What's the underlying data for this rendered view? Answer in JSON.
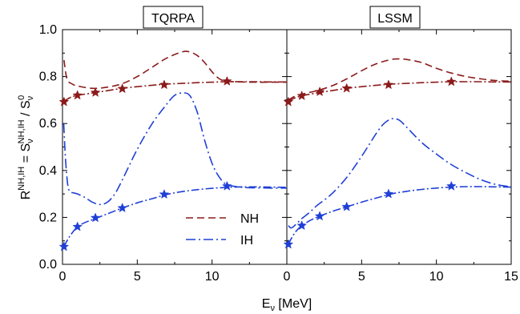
{
  "chart_data": {
    "type": "line",
    "xlabel": "E",
    "xlabel_sub": "ν",
    "xlabel_unit": " [MeV]",
    "ylabel": {
      "main": "R",
      "sup": "NH,IH",
      "mid": " = S",
      "sub": "ν",
      "sup2": "NH,IH",
      "tail": " / S",
      "sub2": "ν",
      "sup3": "0"
    },
    "ylim": [
      0.0,
      1.0
    ],
    "yticks": [
      "0.0",
      "0.2",
      "0.4",
      "0.6",
      "0.8",
      "1.0"
    ],
    "legend": {
      "placement": "bottom-center of left panel",
      "entries": [
        {
          "name": "NH",
          "color": "#8b1a1a",
          "style": "dashed"
        },
        {
          "name": "IH",
          "color": "#1f3fd6",
          "style": "dash-dot"
        }
      ]
    },
    "panels": [
      {
        "title": "TQRPA",
        "xlim": [
          0,
          15
        ],
        "xticks": [
          "0",
          "5",
          "10"
        ],
        "series": [
          {
            "name": "NH",
            "color": "#8b1a1a",
            "style": "dashed",
            "x": [
              0.1,
              0.3,
              0.6,
              1,
              2,
              3,
              4,
              5,
              6,
              7,
              8,
              8.5,
              9,
              9.5,
              10,
              10.5,
              11,
              12,
              13,
              14,
              15
            ],
            "y": [
              0.87,
              0.79,
              0.77,
              0.76,
              0.75,
              0.755,
              0.77,
              0.8,
              0.84,
              0.88,
              0.905,
              0.905,
              0.89,
              0.86,
              0.82,
              0.79,
              0.78,
              0.777,
              0.776,
              0.776,
              0.776
            ]
          },
          {
            "name": "NH-star",
            "color": "#8b1a1a",
            "style": "dashdot",
            "x": [
              0.1,
              0.5,
              1,
              2,
              3,
              4,
              5,
              6,
              7,
              8,
              9,
              10,
              11,
              12,
              13,
              14,
              15
            ],
            "y": [
              0.695,
              0.71,
              0.72,
              0.73,
              0.74,
              0.75,
              0.757,
              0.763,
              0.768,
              0.771,
              0.774,
              0.776,
              0.778,
              0.778,
              0.778,
              0.777,
              0.777
            ]
          },
          {
            "name": "NH-star-markers",
            "color": "#8b1a1a",
            "style": "markers",
            "x": [
              0.1,
              1.0,
              2.2,
              4.0,
              6.8,
              11.0
            ],
            "y": [
              0.692,
              0.72,
              0.732,
              0.748,
              0.765,
              0.78
            ]
          },
          {
            "name": "IH",
            "color": "#1f3fd6",
            "style": "dashdot-long",
            "x": [
              0.08,
              0.2,
              0.35,
              0.5,
              0.7,
              1,
              1.5,
              2,
              2.5,
              3,
              3.5,
              4,
              5,
              6,
              7,
              7.5,
              8,
              8.5,
              9,
              9.5,
              10,
              10.5,
              11,
              12,
              13,
              14,
              15
            ],
            "y": [
              0.6,
              0.45,
              0.34,
              0.31,
              0.305,
              0.3,
              0.285,
              0.265,
              0.255,
              0.265,
              0.3,
              0.36,
              0.49,
              0.6,
              0.685,
              0.72,
              0.73,
              0.72,
              0.65,
              0.53,
              0.43,
              0.37,
              0.34,
              0.328,
              0.326,
              0.325,
              0.325
            ]
          },
          {
            "name": "IH-star",
            "color": "#1f3fd6",
            "style": "dashdot",
            "x": [
              0.1,
              0.3,
              0.6,
              1,
              1.5,
              2,
              3,
              4,
              5,
              6,
              7,
              8,
              9,
              10,
              11,
              12,
              13,
              14,
              15
            ],
            "y": [
              0.075,
              0.1,
              0.13,
              0.16,
              0.178,
              0.19,
              0.215,
              0.24,
              0.262,
              0.28,
              0.298,
              0.31,
              0.318,
              0.324,
              0.328,
              0.33,
              0.33,
              0.329,
              0.328
            ]
          },
          {
            "name": "IH-star-markers",
            "color": "#1f3fd6",
            "style": "markers",
            "x": [
              0.1,
              1.0,
              2.2,
              4.0,
              6.8,
              11.0
            ],
            "y": [
              0.075,
              0.16,
              0.198,
              0.24,
              0.298,
              0.333
            ]
          }
        ]
      },
      {
        "title": "LSSM",
        "xlim": [
          0,
          15
        ],
        "xticks": [
          "0",
          "5",
          "10",
          "15"
        ],
        "series": [
          {
            "name": "NH",
            "color": "#8b1a1a",
            "style": "dashed",
            "x": [
              0.1,
              0.5,
              1,
              2,
              3,
              4,
              5,
              6,
              7,
              7.5,
              8,
              9,
              10,
              11,
              12,
              13,
              14,
              15
            ],
            "y": [
              0.7,
              0.715,
              0.725,
              0.74,
              0.76,
              0.79,
              0.825,
              0.855,
              0.873,
              0.875,
              0.873,
              0.86,
              0.835,
              0.815,
              0.8,
              0.79,
              0.783,
              0.78
            ]
          },
          {
            "name": "NH-star",
            "color": "#8b1a1a",
            "style": "dashdot",
            "x": [
              0.1,
              0.5,
              1,
              2,
              3,
              4,
              5,
              6,
              7,
              8,
              9,
              10,
              11,
              12,
              13,
              14,
              15
            ],
            "y": [
              0.695,
              0.708,
              0.718,
              0.73,
              0.74,
              0.75,
              0.757,
              0.763,
              0.768,
              0.771,
              0.774,
              0.776,
              0.778,
              0.778,
              0.778,
              0.777,
              0.777
            ]
          },
          {
            "name": "NH-star-markers",
            "color": "#8b1a1a",
            "style": "markers",
            "x": [
              0.1,
              1.0,
              2.2,
              4.0,
              6.8,
              11.0
            ],
            "y": [
              0.692,
              0.718,
              0.735,
              0.75,
              0.765,
              0.778
            ]
          },
          {
            "name": "IH",
            "color": "#1f3fd6",
            "style": "dashdot-long",
            "x": [
              0.1,
              0.3,
              0.6,
              1,
              1.5,
              2,
              3,
              4,
              5,
              6,
              6.5,
              7,
              7.5,
              8,
              9,
              10,
              11,
              12,
              13,
              14,
              15
            ],
            "y": [
              0.165,
              0.155,
              0.17,
              0.195,
              0.22,
              0.25,
              0.3,
              0.37,
              0.46,
              0.56,
              0.6,
              0.62,
              0.615,
              0.585,
              0.52,
              0.47,
              0.425,
              0.39,
              0.36,
              0.34,
              0.33
            ]
          },
          {
            "name": "IH-star",
            "color": "#1f3fd6",
            "style": "dashdot",
            "x": [
              0.1,
              0.3,
              0.6,
              1,
              1.5,
              2,
              3,
              4,
              5,
              6,
              7,
              8,
              9,
              10,
              11,
              12,
              13,
              14,
              15
            ],
            "y": [
              0.085,
              0.11,
              0.14,
              0.165,
              0.185,
              0.2,
              0.225,
              0.245,
              0.265,
              0.283,
              0.3,
              0.311,
              0.319,
              0.325,
              0.329,
              0.331,
              0.331,
              0.33,
              0.329
            ]
          },
          {
            "name": "IH-star-markers",
            "color": "#1f3fd6",
            "style": "markers",
            "x": [
              0.1,
              1.0,
              2.2,
              4.0,
              6.8,
              11.0
            ],
            "y": [
              0.085,
              0.165,
              0.205,
              0.245,
              0.3,
              0.333
            ]
          }
        ]
      }
    ]
  }
}
